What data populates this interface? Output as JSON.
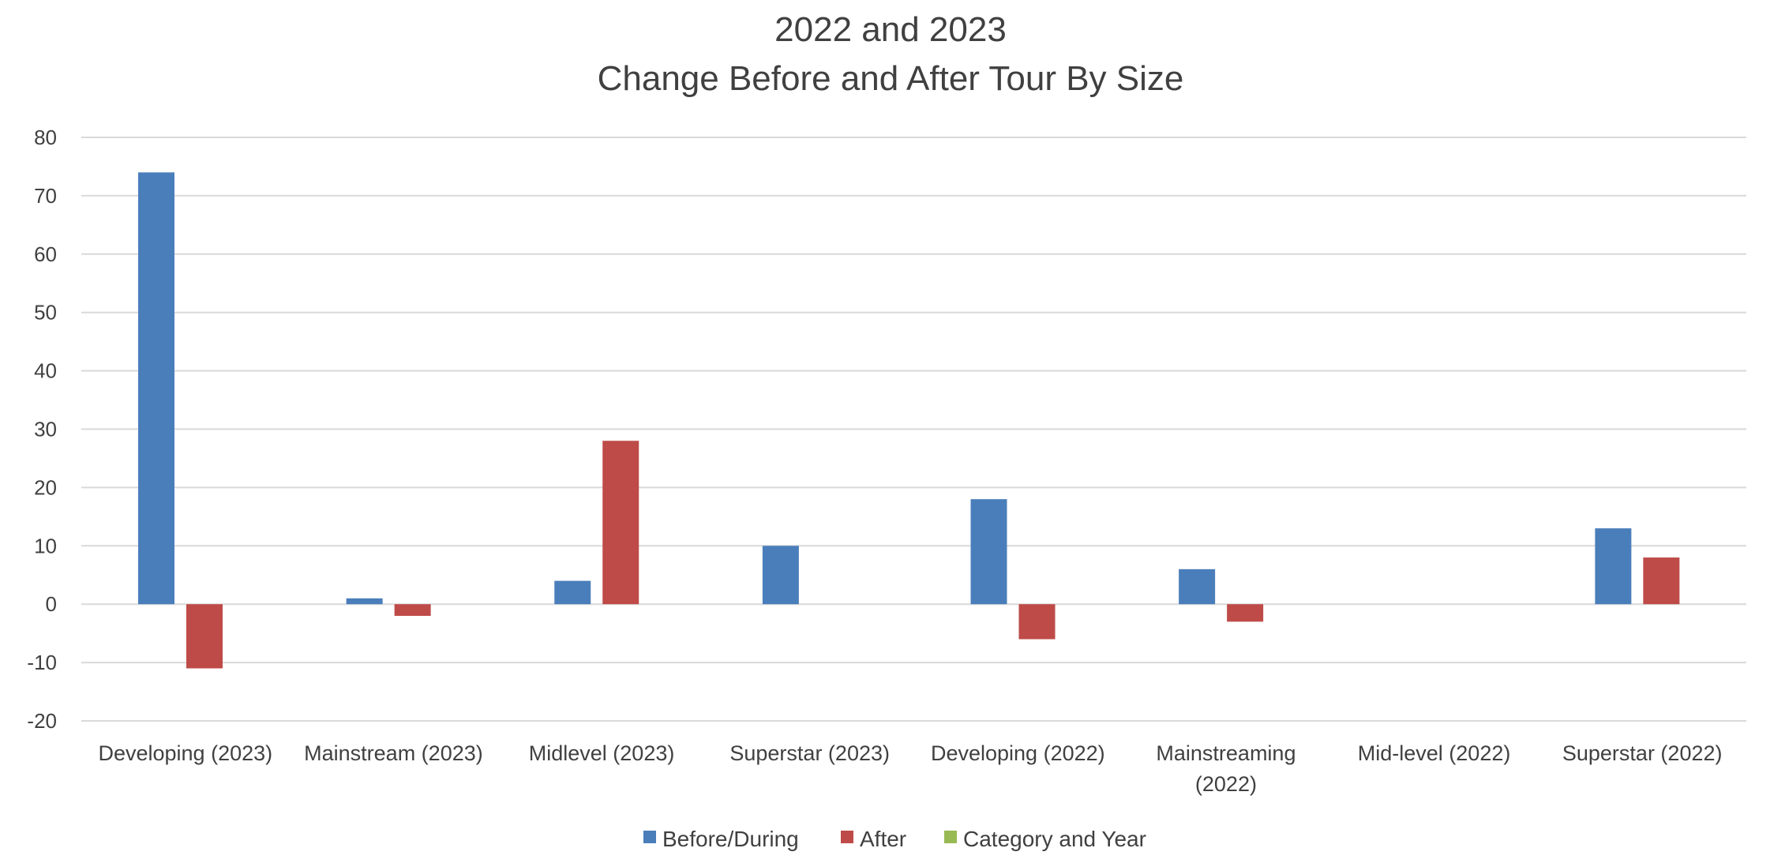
{
  "chart_data": {
    "type": "bar",
    "title_lines": [
      "2022 and 2023",
      "Change Before and After Tour By Size"
    ],
    "categories": [
      [
        "Developing (2023)"
      ],
      [
        "Mainstream (2023)"
      ],
      [
        "Midlevel (2023)"
      ],
      [
        "Superstar (2023)"
      ],
      [
        "Developing (2022)"
      ],
      [
        "Mainstreaming",
        "(2022)"
      ],
      [
        "Mid-level (2022)"
      ],
      [
        "Superstar (2022)"
      ]
    ],
    "series": [
      {
        "name": "Before/During",
        "color": "#4a7ebb",
        "values": [
          74,
          1,
          4,
          10,
          18,
          6,
          0,
          13
        ]
      },
      {
        "name": "After",
        "color": "#be4b48",
        "values": [
          -11,
          -2,
          28,
          0,
          -6,
          -3,
          0,
          8
        ]
      },
      {
        "name": "Category and Year",
        "color": "#98b954",
        "values": [
          0,
          0,
          0,
          0,
          0,
          0,
          0,
          0
        ]
      }
    ],
    "ylim": [
      -20,
      80
    ],
    "yticks": [
      80,
      70,
      60,
      50,
      40,
      30,
      20,
      10,
      0,
      -10,
      -20
    ],
    "grid": true,
    "legend_position": "bottom"
  }
}
